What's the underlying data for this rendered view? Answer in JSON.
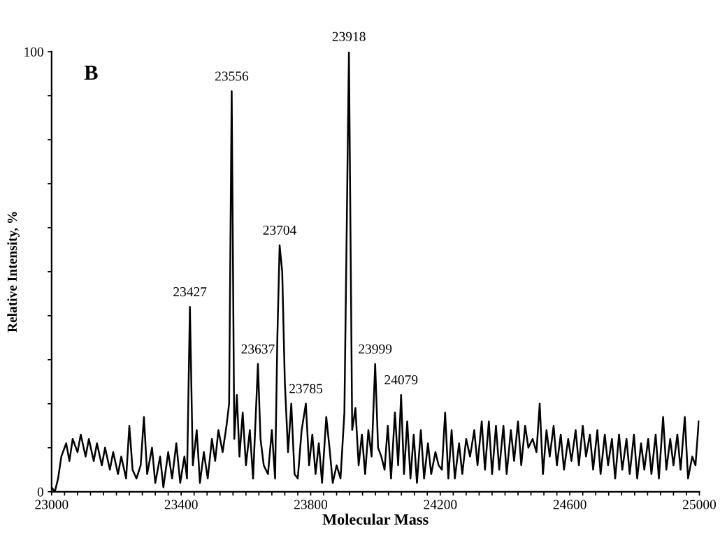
{
  "chart_data": {
    "type": "line",
    "title": "B",
    "xlabel": "Molecular Mass",
    "ylabel": "Relative Intensity, %",
    "color": "#000000",
    "line_style": "solid",
    "grid": false,
    "xlim": [
      23000,
      25000
    ],
    "ylim": [
      0,
      100
    ],
    "xticks": [
      23000,
      {
        "value": 23040,
        "label": null
      },
      {
        "value": 23080,
        "label": null
      },
      {
        "value": 23120,
        "label": null
      },
      {
        "value": 23160,
        "label": null
      },
      {
        "value": 23200,
        "label": null
      },
      {
        "value": 23240,
        "label": null
      },
      {
        "value": 23280,
        "label": null
      },
      {
        "value": 23320,
        "label": null
      },
      {
        "value": 23360,
        "label": null
      },
      23400,
      {
        "value": 23440,
        "label": null
      },
      {
        "value": 23480,
        "label": null
      },
      {
        "value": 23520,
        "label": null
      },
      {
        "value": 23560,
        "label": null
      },
      {
        "value": 23600,
        "label": null
      },
      {
        "value": 23640,
        "label": null
      },
      {
        "value": 23680,
        "label": null
      },
      {
        "value": 23720,
        "label": null
      },
      {
        "value": 23760,
        "label": null
      },
      23800,
      {
        "value": 23840,
        "label": null
      },
      {
        "value": 23880,
        "label": null
      },
      {
        "value": 23920,
        "label": null
      },
      {
        "value": 23960,
        "label": null
      },
      {
        "value": 24000,
        "label": null
      },
      {
        "value": 24040,
        "label": null
      },
      {
        "value": 24080,
        "label": null
      },
      {
        "value": 24120,
        "label": null
      },
      {
        "value": 24160,
        "label": null
      },
      24200,
      {
        "value": 24240,
        "label": null
      },
      {
        "value": 24280,
        "label": null
      },
      {
        "value": 24320,
        "label": null
      },
      {
        "value": 24360,
        "label": null
      },
      {
        "value": 24400,
        "label": null
      },
      {
        "value": 24440,
        "label": null
      },
      {
        "value": 24480,
        "label": null
      },
      {
        "value": 24520,
        "label": null
      },
      {
        "value": 24560,
        "label": null
      },
      24600,
      {
        "value": 24640,
        "label": null
      },
      {
        "value": 24680,
        "label": null
      },
      {
        "value": 24720,
        "label": null
      },
      {
        "value": 24760,
        "label": null
      },
      {
        "value": 24800,
        "label": null
      },
      {
        "value": 24840,
        "label": null
      },
      {
        "value": 24880,
        "label": null
      },
      {
        "value": 24920,
        "label": null
      },
      {
        "value": 24960,
        "label": null
      },
      25000
    ],
    "yticks": [
      0,
      {
        "value": 10,
        "label": null
      },
      {
        "value": 20,
        "label": null
      },
      {
        "value": 30,
        "label": null
      },
      {
        "value": 40,
        "label": null
      },
      {
        "value": 50,
        "label": null
      },
      {
        "value": 60,
        "label": null
      },
      {
        "value": 70,
        "label": null
      },
      {
        "value": 80,
        "label": null
      },
      {
        "value": 90,
        "label": null
      },
      100
    ],
    "annotations": [
      {
        "text": "23427",
        "x": 23427,
        "y": 42
      },
      {
        "text": "23556",
        "x": 23556,
        "y": 91
      },
      {
        "text": "23637",
        "x": 23637,
        "y": 29
      },
      {
        "text": "23704",
        "x": 23704,
        "y": 56
      },
      {
        "text": "23785",
        "x": 23785,
        "y": 20
      },
      {
        "text": "23918",
        "x": 23918,
        "y": 100
      },
      {
        "text": "23999",
        "x": 23999,
        "y": 29
      },
      {
        "text": "24079",
        "x": 24079,
        "y": 22
      }
    ],
    "x": [
      23000,
      23010,
      23020,
      23030,
      23045,
      23055,
      23065,
      23080,
      23090,
      23105,
      23115,
      23130,
      23140,
      23155,
      23165,
      23180,
      23190,
      23205,
      23215,
      23230,
      23240,
      23250,
      23262,
      23275,
      23285,
      23295,
      23310,
      23320,
      23335,
      23345,
      23360,
      23372,
      23385,
      23397,
      23410,
      23418,
      23427,
      23436,
      23448,
      23458,
      23470,
      23482,
      23495,
      23505,
      23515,
      23528,
      23540,
      23548,
      23556,
      23564,
      23572,
      23580,
      23590,
      23600,
      23612,
      23622,
      23637,
      23645,
      23655,
      23668,
      23680,
      23690,
      23697,
      23704,
      23712,
      23720,
      23730,
      23740,
      23750,
      23760,
      23772,
      23785,
      23795,
      23805,
      23815,
      23825,
      23835,
      23848,
      23858,
      23868,
      23880,
      23892,
      23904,
      23918,
      23928,
      23938,
      23948,
      23958,
      23968,
      23978,
      23988,
      23999,
      24008,
      24018,
      24028,
      24038,
      24048,
      24060,
      24070,
      24079,
      24088,
      24098,
      24108,
      24118,
      24128,
      24140,
      24150,
      24162,
      24172,
      24185,
      24195,
      24205,
      24215,
      24225,
      24235,
      24245,
      24258,
      24268,
      24280,
      24292,
      24305,
      24315,
      24328,
      24338,
      24350,
      24360,
      24372,
      24382,
      24395,
      24405,
      24418,
      24428,
      24440,
      24450,
      24462,
      24472,
      24485,
      24497,
      24507,
      24517,
      24528,
      24538,
      24550,
      24560,
      24572,
      24582,
      24595,
      24605,
      24618,
      24628,
      24640,
      24650,
      24662,
      24672,
      24685,
      24695,
      24708,
      24718,
      24730,
      24740,
      24752,
      24762,
      24775,
      24785,
      24798,
      24808,
      24820,
      24830,
      24842,
      24852,
      24865,
      24875,
      24888,
      24898,
      24910,
      24920,
      24932,
      24942,
      24955,
      24965,
      24978,
      24988,
      24998
    ],
    "values": [
      1,
      0,
      3,
      8,
      11,
      7,
      12,
      9,
      13,
      8,
      12,
      7,
      11,
      6,
      10,
      5,
      9,
      4,
      8,
      3,
      15,
      5,
      3,
      6,
      17,
      4,
      10,
      2,
      8,
      1,
      9,
      3,
      11,
      2,
      8,
      3,
      42,
      6,
      14,
      2,
      9,
      3,
      12,
      7,
      14,
      9,
      15,
      20,
      91,
      12,
      22,
      8,
      18,
      6,
      14,
      3,
      29,
      12,
      6,
      4,
      14,
      3,
      35,
      56,
      50,
      25,
      9,
      20,
      4,
      3,
      14,
      20,
      6,
      13,
      4,
      11,
      2,
      17,
      10,
      2,
      6,
      3,
      18,
      100,
      14,
      19,
      6,
      13,
      4,
      14,
      8,
      29,
      10,
      8,
      5,
      15,
      3,
      18,
      6,
      22,
      4,
      16,
      3,
      13,
      2,
      14,
      3,
      11,
      4,
      9,
      6,
      5,
      18,
      3,
      14,
      3,
      11,
      4,
      12,
      8,
      14,
      6,
      16,
      5,
      16,
      4,
      15,
      5,
      15,
      4,
      14,
      7,
      16,
      6,
      15,
      10,
      12,
      9,
      20,
      4,
      14,
      8,
      15,
      6,
      13,
      5,
      12,
      7,
      14,
      6,
      15,
      8,
      13,
      5,
      14,
      4,
      13,
      6,
      12,
      3,
      13,
      5,
      12,
      4,
      13,
      3,
      11,
      5,
      12,
      4,
      13,
      3,
      17,
      5,
      12,
      6,
      13,
      5,
      17,
      3,
      8,
      6,
      16
    ]
  }
}
